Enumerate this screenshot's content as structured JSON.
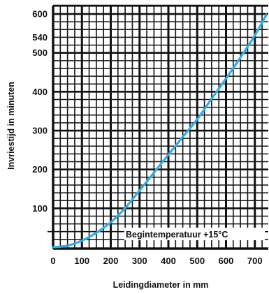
{
  "chart_data": {
    "type": "line",
    "xlabel": "Leidingdiameter in mm",
    "ylabel": "Invriestijd in minuten",
    "xlim": [
      0,
      740
    ],
    "ylim": [
      0,
      620
    ],
    "x_ticks": [
      0,
      100,
      200,
      300,
      400,
      500,
      600,
      700
    ],
    "y_ticks": [
      100,
      200,
      300,
      400,
      500,
      540,
      600
    ],
    "grid": true,
    "annotation": {
      "text": "Begintemperatuur +15°C",
      "y": 40
    },
    "series": [
      {
        "color": "#2eaee6",
        "x": [
          0,
          50,
          100,
          150,
          200,
          250,
          300,
          350,
          400,
          450,
          500,
          550,
          600,
          650,
          700,
          740
        ],
        "y": [
          0,
          4,
          17,
          37,
          64,
          101,
          146,
          192,
          238,
          284,
          329,
          382,
          434,
          488,
          545,
          598
        ]
      }
    ]
  }
}
